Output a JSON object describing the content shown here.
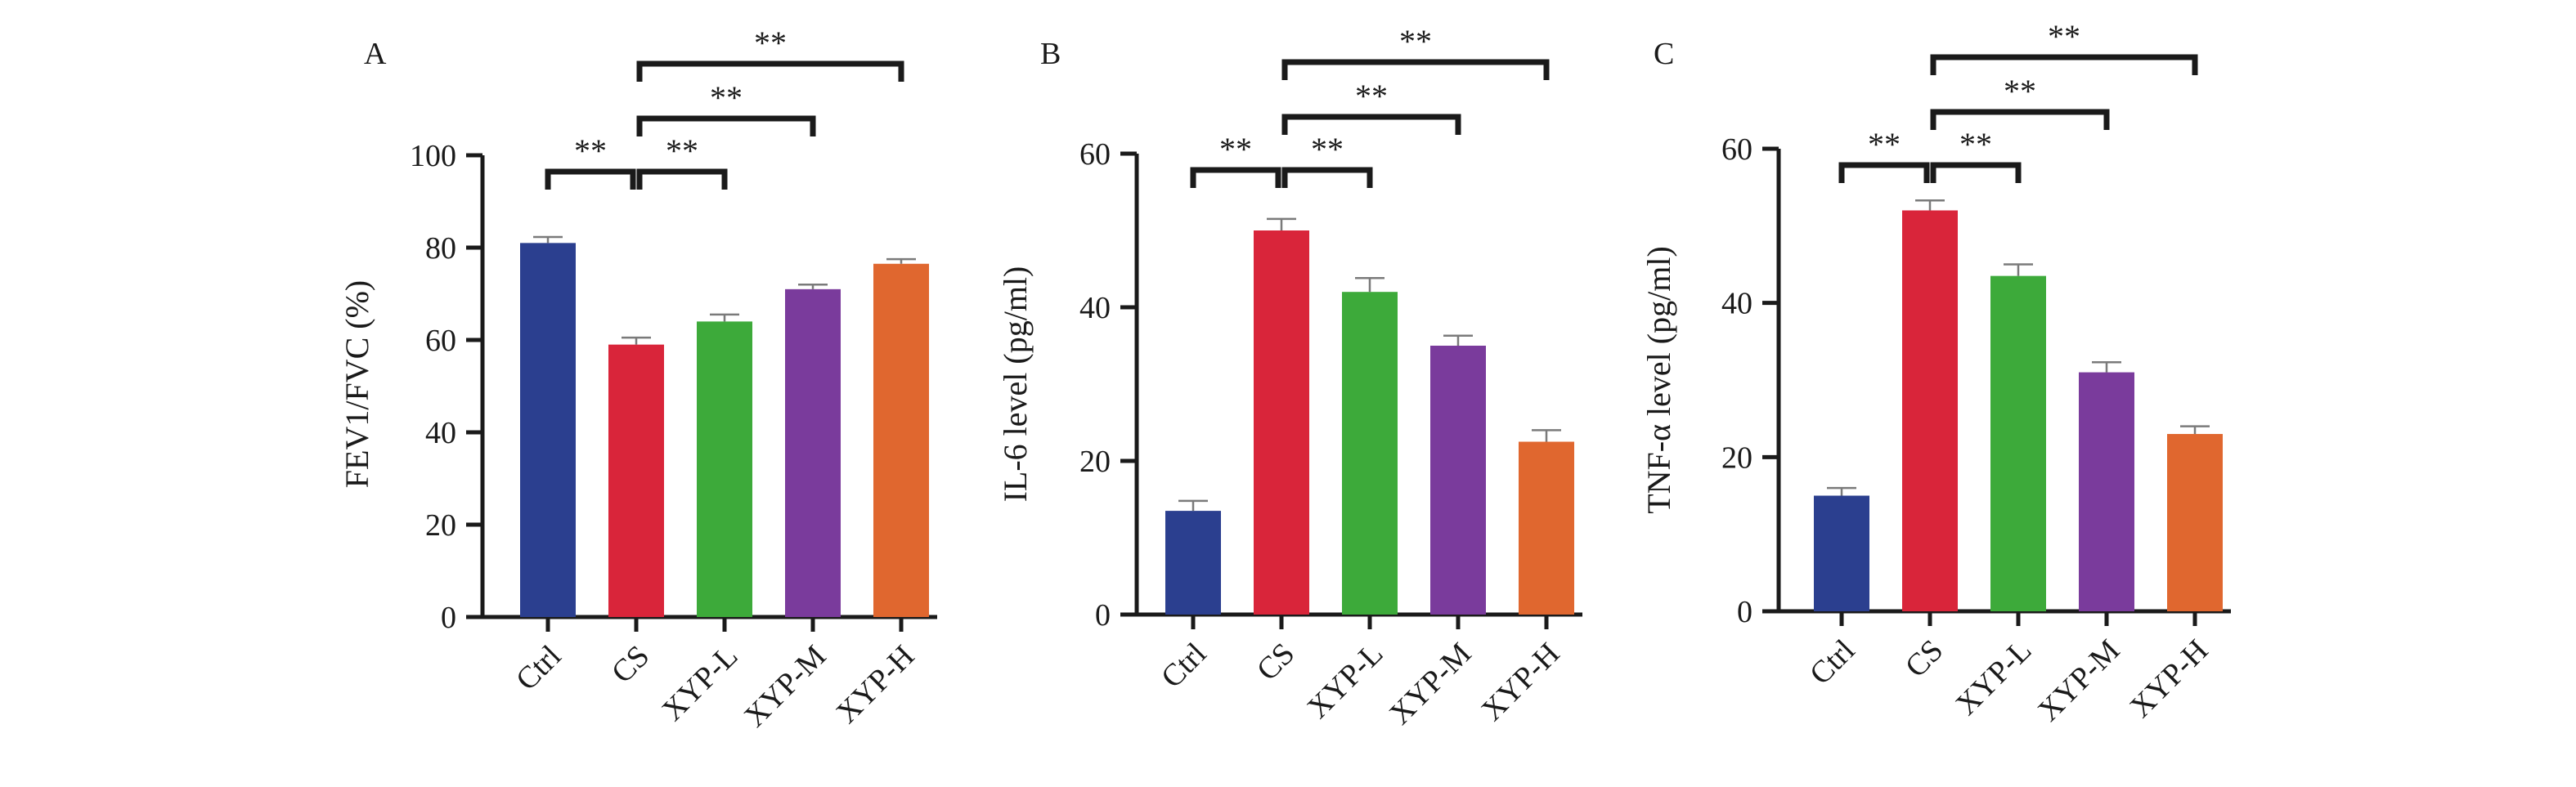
{
  "chart_data": [
    {
      "panel_label": "A",
      "type": "bar",
      "categories": [
        "Ctrl",
        "CS",
        "XYP-L",
        "XYP-M",
        "XYP-H"
      ],
      "values": [
        81,
        59,
        64,
        71,
        76.5
      ],
      "errors": [
        1.3,
        1.5,
        1.5,
        1.0,
        1.0
      ],
      "ylabel": "FEV1/FVC (%)",
      "ylim": [
        0,
        100
      ],
      "yticks": [
        "0",
        "20",
        "40",
        "60",
        "80",
        "100"
      ],
      "significance": [
        {
          "from": "Ctrl",
          "to": "CS",
          "label": "**"
        },
        {
          "from": "CS",
          "to": "XYP-L",
          "label": "**"
        },
        {
          "from": "CS",
          "to": "XYP-M",
          "label": "**"
        },
        {
          "from": "CS",
          "to": "XYP-H",
          "label": "**"
        }
      ]
    },
    {
      "panel_label": "B",
      "type": "bar",
      "categories": [
        "Ctrl",
        "CS",
        "XYP-L",
        "XYP-M",
        "XYP-H"
      ],
      "values": [
        13.5,
        50,
        42,
        35,
        22.5
      ],
      "errors": [
        1.3,
        1.5,
        1.8,
        1.3,
        1.5
      ],
      "ylabel": "IL-6 level (pg/ml)",
      "ylim": [
        0,
        60
      ],
      "yticks": [
        "0",
        "20",
        "40",
        "60"
      ],
      "significance": [
        {
          "from": "Ctrl",
          "to": "CS",
          "label": "**"
        },
        {
          "from": "CS",
          "to": "XYP-L",
          "label": "**"
        },
        {
          "from": "CS",
          "to": "XYP-M",
          "label": "**"
        },
        {
          "from": "CS",
          "to": "XYP-H",
          "label": "**"
        }
      ]
    },
    {
      "panel_label": "C",
      "type": "bar",
      "categories": [
        "Ctrl",
        "CS",
        "XYP-L",
        "XYP-M",
        "XYP-H"
      ],
      "values": [
        15,
        52,
        43.5,
        31,
        23
      ],
      "errors": [
        1.0,
        1.3,
        1.5,
        1.3,
        1.0
      ],
      "ylabel": "TNF-α level (pg/ml)",
      "ylim": [
        0,
        60
      ],
      "yticks": [
        "0",
        "20",
        "40",
        "60"
      ],
      "significance": [
        {
          "from": "Ctrl",
          "to": "CS",
          "label": "**"
        },
        {
          "from": "CS",
          "to": "XYP-L",
          "label": "**"
        },
        {
          "from": "CS",
          "to": "XYP-M",
          "label": "**"
        },
        {
          "from": "CS",
          "to": "XYP-H",
          "label": "**"
        }
      ]
    }
  ],
  "colors": {
    "bars": [
      "#2b3f8f",
      "#d9253a",
      "#3daa3a",
      "#7a3b9c",
      "#e0672f"
    ],
    "axis": "#1a1a1a"
  }
}
